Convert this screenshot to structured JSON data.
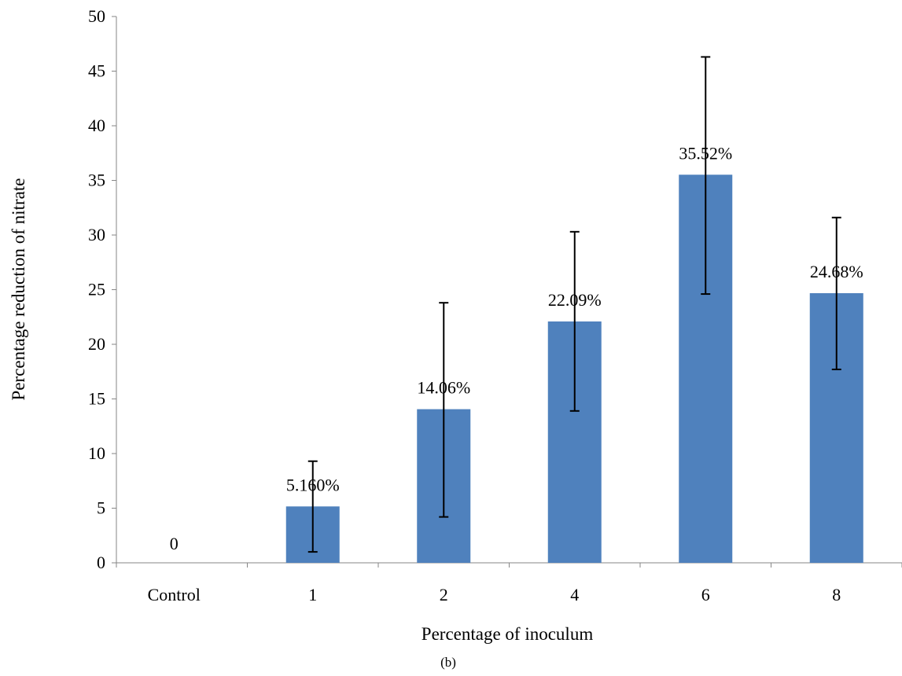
{
  "chart_data": {
    "type": "bar",
    "title": "",
    "xlabel": "Percentage of inoculum",
    "ylabel": "Percentage reduction of nitrate",
    "caption": "(b)",
    "categories": [
      "Control",
      "1",
      "2",
      "4",
      "6",
      "8"
    ],
    "values": [
      0,
      5.16,
      14.06,
      22.09,
      35.52,
      24.68
    ],
    "data_labels": [
      "0",
      "5.160%",
      "14.06%",
      "22.09%",
      "35.52%",
      "24.68%"
    ],
    "error_bars": [
      {
        "low": 0,
        "high": 0
      },
      {
        "low": 1.0,
        "high": 9.3
      },
      {
        "low": 4.2,
        "high": 23.8
      },
      {
        "low": 13.9,
        "high": 30.3
      },
      {
        "low": 24.6,
        "high": 46.3
      },
      {
        "low": 17.7,
        "high": 31.6
      }
    ],
    "yticks": [
      0,
      5,
      10,
      15,
      20,
      25,
      30,
      35,
      40,
      45,
      50
    ],
    "ylim": [
      0,
      50
    ],
    "grid": false,
    "legend": "none",
    "bar_color": "#4F81BD"
  }
}
